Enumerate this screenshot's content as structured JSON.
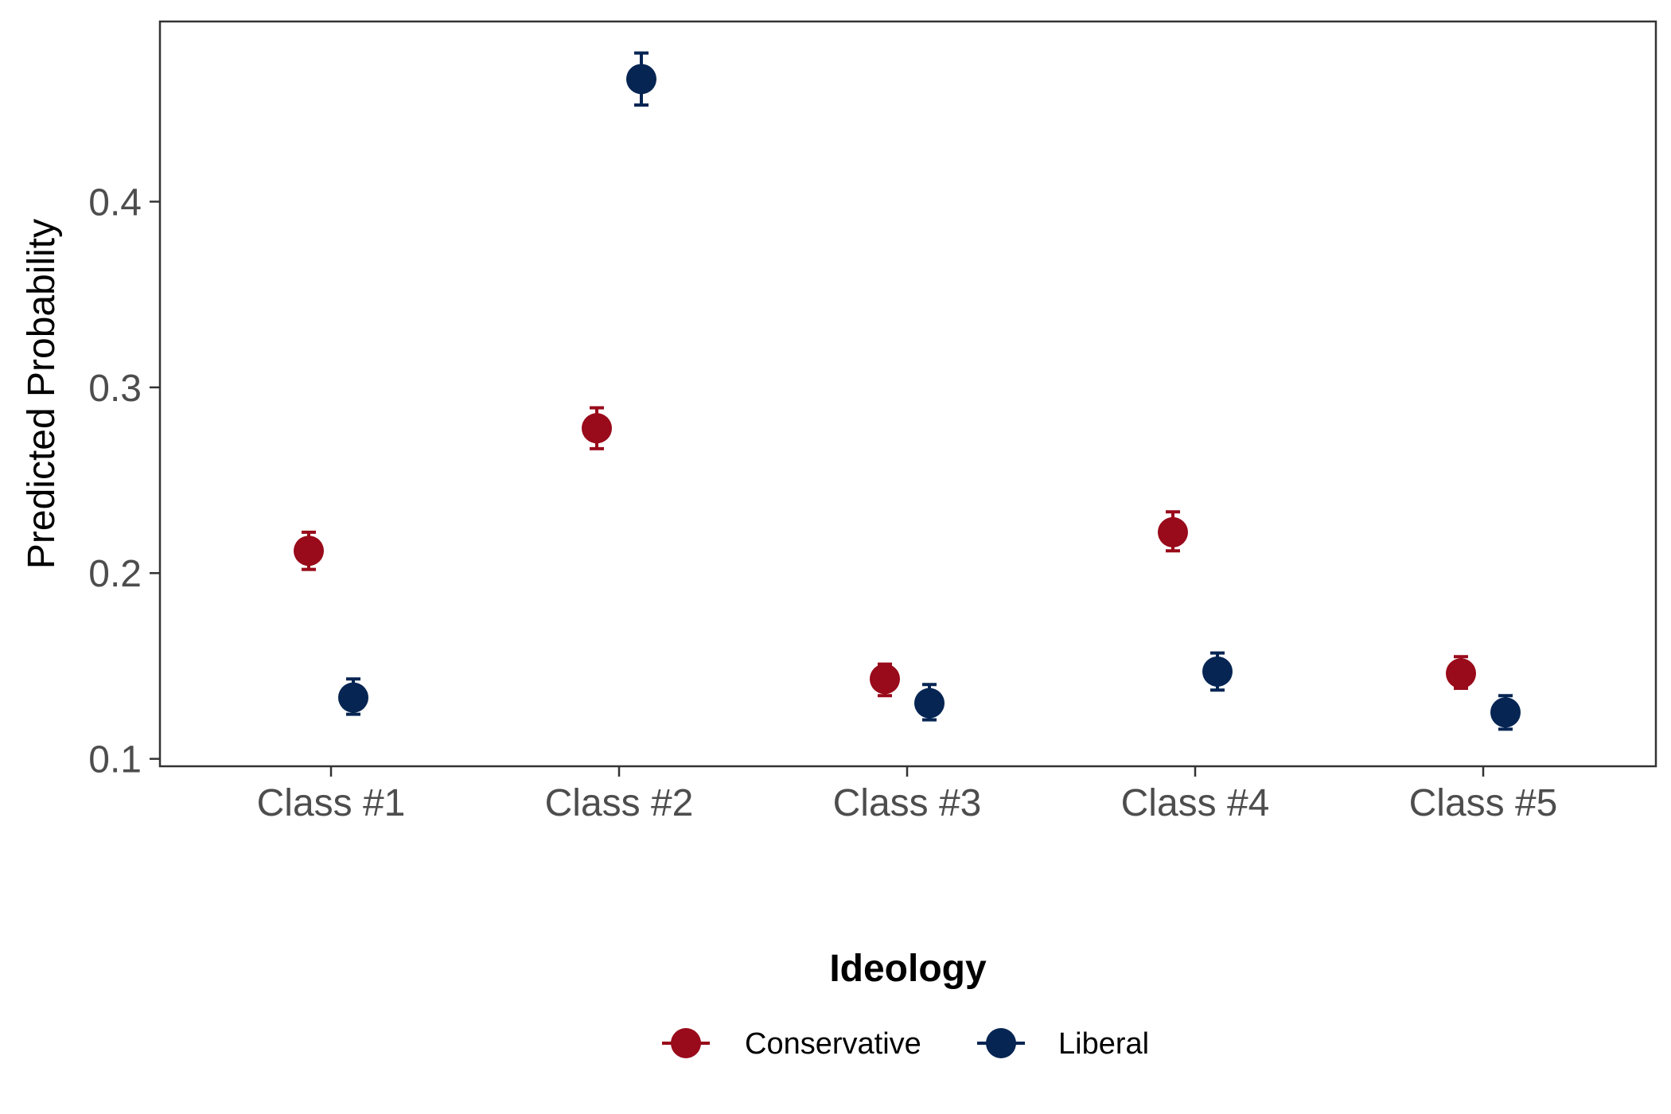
{
  "chart_data": {
    "type": "scatter",
    "subtype": "dot-and-errorbar",
    "title": "",
    "xlabel": "",
    "ylabel": "Predicted Probability",
    "categories": [
      "Class #1",
      "Class #2",
      "Class #3",
      "Class #4",
      "Class #5"
    ],
    "ylim": [
      0.096,
      0.497
    ],
    "yticks": [
      "0.1",
      "0.2",
      "0.3",
      "0.4"
    ],
    "grid": false,
    "legend": {
      "title": "Ideology",
      "position": "bottom"
    },
    "series": [
      {
        "name": "Conservative",
        "color": "#990a1a",
        "values": [
          0.212,
          0.278,
          0.143,
          0.222,
          0.146
        ],
        "lower": [
          0.202,
          0.267,
          0.134,
          0.212,
          0.138
        ],
        "upper": [
          0.222,
          0.289,
          0.151,
          0.233,
          0.155
        ]
      },
      {
        "name": "Liberal",
        "color": "#062553",
        "values": [
          0.133,
          0.466,
          0.13,
          0.147,
          0.125
        ],
        "lower": [
          0.124,
          0.452,
          0.121,
          0.137,
          0.116
        ],
        "upper": [
          0.143,
          0.48,
          0.14,
          0.157,
          0.134
        ]
      }
    ]
  }
}
